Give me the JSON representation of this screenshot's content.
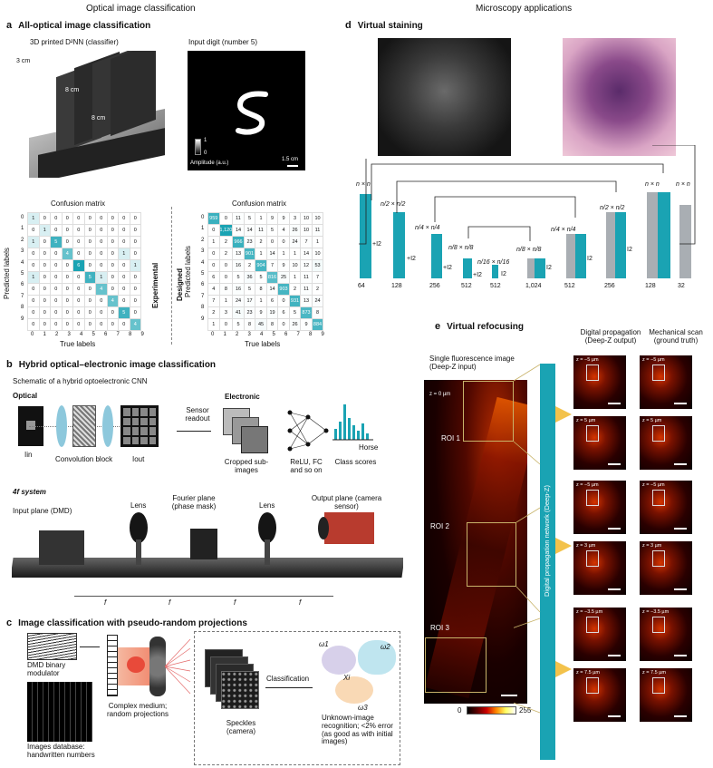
{
  "headers": {
    "left": "Optical image classification",
    "right": "Microscopy applications"
  },
  "panel_a": {
    "letter": "a",
    "title": "All-optical image classification",
    "device_label": "3D printed D²NN (classifier)",
    "dim_3cm": "3 cm",
    "dim_8cm_a": "8 cm",
    "dim_8cm_b": "8 cm",
    "input_label": "Input digit (number 5)",
    "colorbar_max": "1",
    "colorbar_min": "0",
    "amplitude": "Amplitude (a.u.)",
    "scalebar": "1.5 cm",
    "cm_left": {
      "title": "Confusion matrix",
      "ylabel": "Predicted labels",
      "xlabel": "True labels",
      "side": "Experimental",
      "ticks": [
        "0",
        "1",
        "2",
        "3",
        "4",
        "5",
        "6",
        "7",
        "8",
        "9"
      ],
      "cells": [
        [
          "1",
          "0",
          "0",
          "0",
          "0",
          "0",
          "0",
          "0",
          "0",
          "0"
        ],
        [
          "0",
          "1",
          "0",
          "0",
          "0",
          "0",
          "0",
          "0",
          "0",
          "0"
        ],
        [
          "1",
          "0",
          "5",
          "0",
          "0",
          "0",
          "0",
          "0",
          "0",
          "0"
        ],
        [
          "0",
          "0",
          "0",
          "4",
          "0",
          "0",
          "0",
          "0",
          "1",
          "0"
        ],
        [
          "0",
          "0",
          "0",
          "0",
          "6",
          "0",
          "0",
          "0",
          "0",
          "1"
        ],
        [
          "1",
          "0",
          "0",
          "0",
          "0",
          "5",
          "1",
          "0",
          "0",
          "0"
        ],
        [
          "0",
          "0",
          "0",
          "0",
          "0",
          "0",
          "4",
          "0",
          "0",
          "0"
        ],
        [
          "0",
          "0",
          "0",
          "0",
          "0",
          "0",
          "0",
          "4",
          "0",
          "0"
        ],
        [
          "0",
          "0",
          "0",
          "0",
          "0",
          "0",
          "0",
          "0",
          "5",
          "0"
        ],
        [
          "0",
          "0",
          "0",
          "0",
          "0",
          "0",
          "0",
          "0",
          "0",
          "4"
        ]
      ]
    },
    "cm_right": {
      "title": "Confusion matrix",
      "ylabel": "Predicted labels",
      "xlabel": "True labels",
      "side": "Designed",
      "ticks": [
        "0",
        "1",
        "2",
        "3",
        "4",
        "5",
        "6",
        "7",
        "8",
        "9"
      ],
      "cells": [
        [
          "959",
          "0",
          "11",
          "5",
          "1",
          "9",
          "9",
          "3",
          "10",
          "10"
        ],
        [
          "0",
          "1,120",
          "14",
          "14",
          "11",
          "5",
          "4",
          "26",
          "10",
          "11"
        ],
        [
          "1",
          "2",
          "966",
          "23",
          "2",
          "0",
          "0",
          "24",
          "7",
          "1"
        ],
        [
          "0",
          "2",
          "13",
          "901",
          "1",
          "14",
          "1",
          "1",
          "14",
          "10"
        ],
        [
          "0",
          "0",
          "16",
          "2",
          "904",
          "7",
          "9",
          "10",
          "12",
          "53"
        ],
        [
          "6",
          "0",
          "5",
          "36",
          "5",
          "816",
          "25",
          "1",
          "11",
          "7"
        ],
        [
          "4",
          "8",
          "16",
          "5",
          "8",
          "14",
          "903",
          "2",
          "11",
          "2"
        ],
        [
          "7",
          "1",
          "24",
          "17",
          "1",
          "6",
          "0",
          "931",
          "13",
          "24"
        ],
        [
          "2",
          "3",
          "41",
          "23",
          "9",
          "19",
          "6",
          "5",
          "873",
          "8"
        ],
        [
          "1",
          "0",
          "5",
          "8",
          "45",
          "8",
          "0",
          "26",
          "9",
          "884"
        ]
      ]
    }
  },
  "panel_b": {
    "letter": "b",
    "title": "Hybrid optical–electronic image classification",
    "schematic": "Schematic of a hybrid optoelectronic CNN",
    "optical": "Optical",
    "iin": "Iin",
    "conv_block": "Convolution block",
    "iout": "Iout",
    "sensor": "Sensor readout",
    "electronic": "Electronic",
    "cropped": "Cropped sub-images",
    "relu": "ReLU, FC and so on",
    "class_scores": "Class scores",
    "horse": "Horse",
    "system": "4f system",
    "input_plane": "Input plane (DMD)",
    "lens1": "Lens",
    "fourier": "Fourier plane (phase mask)",
    "lens2": "Lens",
    "output_plane": "Output plane (camera sensor)",
    "f": "f"
  },
  "panel_c": {
    "letter": "c",
    "title": "Image classification with pseudo-random projections",
    "dmd": "DMD binary modulator",
    "db": "Images database: handwritten numbers",
    "complex": "Complex medium; random projections",
    "speckles": "Speckles (camera)",
    "classification": "Classification",
    "w1": "ω1",
    "w2": "ω2",
    "w3": "ω3",
    "xi": "Xi",
    "unknown": "Unknown-image recognition; <2% error (as good as with initial images)"
  },
  "panel_d": {
    "letter": "d",
    "title": "Virtual staining",
    "dims": [
      "n × n",
      "n/2 × n/2",
      "n/4 × n/4",
      "n/8 × n/8",
      "n/16 × n/16",
      "n/8 × n/8",
      "n/4 × n/4",
      "n/2 × n/2",
      "n × n",
      "n × n"
    ],
    "channels": [
      "64",
      "128",
      "256",
      "512",
      "512",
      "1,024",
      "512",
      "256",
      "128",
      "32"
    ],
    "ops": [
      "+I2",
      "+I2",
      "+I2",
      "+I2",
      "I2",
      "I2",
      "I2",
      "I2"
    ],
    "up_ops": [
      "↑2",
      "↑2",
      "↑2",
      "↑2"
    ]
  },
  "panel_e": {
    "letter": "e",
    "title": "Virtual refocusing",
    "single": "Single fluorescence image (Deep-Z input)",
    "digital": "Digital propagation (Deep-Z output)",
    "mech": "Mechanical scan (ground truth)",
    "z0": "z = 0 µm",
    "roi1": "ROI 1",
    "roi2": "ROI 2",
    "roi3": "ROI 3",
    "network": "Digital propagation network (Deep-Z)",
    "cb_min": "0",
    "cb_max": "255",
    "z_left": [
      "z = −5 µm",
      "z = 5 µm",
      "z = −5 µm",
      "z = 3 µm",
      "z = −3.5 µm",
      "z = 7.5 µm"
    ],
    "z_right": [
      "z = −5 µm",
      "z = 5 µm",
      "z = −5 µm",
      "z = 3 µm",
      "z = −3.5 µm",
      "z = 7.5 µm"
    ]
  }
}
